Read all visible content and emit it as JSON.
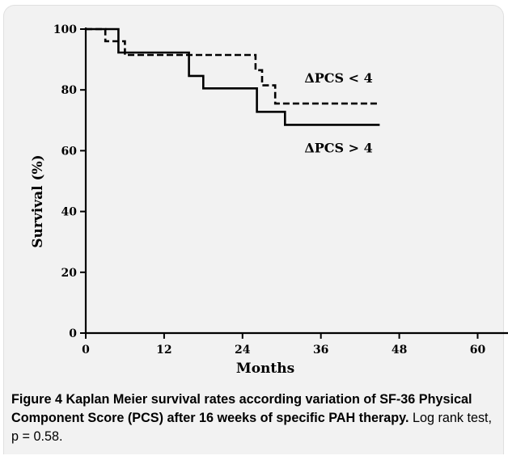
{
  "chart_data": {
    "type": "line",
    "step": true,
    "xlabel": "Months",
    "ylabel": "Survival (%)",
    "xlim": [
      0,
      67
    ],
    "ylim": [
      0,
      100
    ],
    "x_ticks": [
      0,
      12,
      24,
      36,
      48,
      60
    ],
    "y_ticks": [
      0,
      20,
      40,
      60,
      80,
      100
    ],
    "series": [
      {
        "name": "ΔPCS < 4",
        "style": "dashed",
        "color": "#000000",
        "points": [
          [
            0,
            100
          ],
          [
            3,
            100
          ],
          [
            3,
            96
          ],
          [
            6,
            96
          ],
          [
            6,
            91.5
          ],
          [
            26,
            91.5
          ],
          [
            26,
            86.5
          ],
          [
            27,
            86.5
          ],
          [
            27,
            81.5
          ],
          [
            29,
            81.5
          ],
          [
            29,
            75.5
          ],
          [
            45,
            75.5
          ]
        ]
      },
      {
        "name": "ΔPCS > 4",
        "style": "solid",
        "color": "#000000",
        "points": [
          [
            0,
            100
          ],
          [
            5,
            100
          ],
          [
            5,
            92.3
          ],
          [
            15.8,
            92.3
          ],
          [
            15.8,
            84.6
          ],
          [
            18,
            84.6
          ],
          [
            18,
            80.5
          ],
          [
            26.2,
            80.5
          ],
          [
            26.2,
            72.8
          ],
          [
            30.5,
            72.8
          ],
          [
            30.5,
            68.5
          ],
          [
            45,
            68.5
          ]
        ]
      }
    ],
    "annotations": [
      {
        "text": "ΔPCS < 4",
        "x": 45,
        "y": 84
      },
      {
        "text": "ΔPCS > 4",
        "x": 45,
        "y": 61
      }
    ]
  },
  "caption": {
    "lead": "Figure 4 Kaplan Meier survival rates according variation of SF-36 Physical Component Score (PCS) after 16 weeks of specific PAH therapy.",
    "tail": " Log rank test, p = 0.58."
  }
}
